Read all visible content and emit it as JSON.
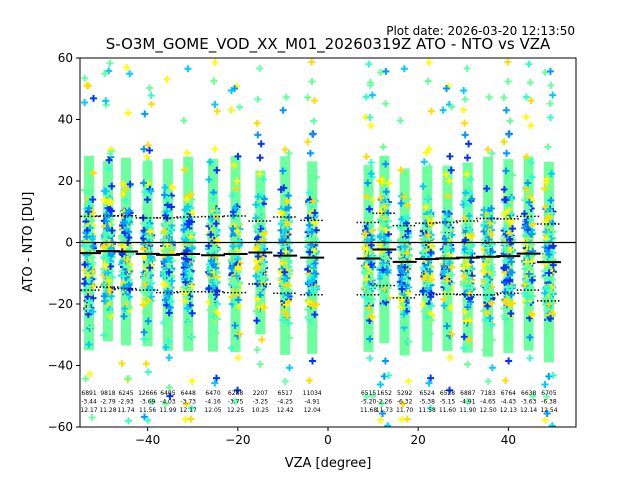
{
  "chart_data": {
    "type": "scatter",
    "title": "S-O3M_GOME_VOD_XX_M01_20260319Z ATO - NTO vs VZA",
    "plot_date": "Plot date: 2026-03-20 12:13:50",
    "xlabel": "VZA [degree]",
    "ylabel": "ATO - NTO [DU]",
    "xlim": [
      -55,
      55
    ],
    "ylim": [
      -60,
      60
    ],
    "xticks": [
      -40,
      -20,
      0,
      20,
      40
    ],
    "yticks": [
      -60,
      -40,
      -20,
      0,
      20,
      40,
      60
    ],
    "grid": false,
    "colors": {
      "scatter": [
        "#66ff99",
        "#33ffcc",
        "#00ccff",
        "#66ffaa",
        "#ffff00",
        "#ffdd00",
        "#0033ff",
        "#0099ff"
      ],
      "median": "#000000",
      "zero_line": "#000000"
    },
    "bins": [
      {
        "vza": -53.0,
        "median": -3.44,
        "upper": 8.5,
        "lower": -15.5,
        "n": "6891",
        "mean": "-3.44",
        "std": "12.17"
      },
      {
        "vza": -48.8,
        "median": -2.79,
        "upper": 8.6,
        "lower": -14.5,
        "n": "9818",
        "mean": "-2.79",
        "std": "11.28"
      },
      {
        "vza": -44.8,
        "median": -2.93,
        "upper": 8.7,
        "lower": -15.0,
        "n": "6245",
        "mean": "-2.93",
        "std": "11.74"
      },
      {
        "vza": -40.0,
        "median": -3.69,
        "upper": 8.0,
        "lower": -15.5,
        "n": "12666",
        "mean": "-3.69",
        "std": "11.56"
      },
      {
        "vza": -35.5,
        "median": -4.03,
        "upper": 8.0,
        "lower": -16.3,
        "n": "6405",
        "mean": "-4.03",
        "std": "11.99"
      },
      {
        "vza": -31.0,
        "median": -3.73,
        "upper": 8.3,
        "lower": -16.0,
        "n": "6448",
        "mean": "-3.73",
        "std": "12.17"
      },
      {
        "vza": -25.5,
        "median": -4.16,
        "upper": 8.4,
        "lower": -16.0,
        "n": "6470",
        "mean": "-4.16",
        "std": "12.05"
      },
      {
        "vza": -20.5,
        "median": -3.75,
        "upper": 8.6,
        "lower": -16.3,
        "n": "6288",
        "mean": "-3.75",
        "std": "12.25"
      },
      {
        "vza": -15.0,
        "median": -3.25,
        "upper": 7.0,
        "lower": -13.5,
        "n": "2207",
        "mean": "-3.25",
        "std": "10.25"
      },
      {
        "vza": -9.5,
        "median": -4.25,
        "upper": 8.3,
        "lower": -16.5,
        "n": "6517",
        "mean": "-4.25",
        "std": "12.42"
      },
      {
        "vza": -3.5,
        "median": -4.91,
        "upper": 7.2,
        "lower": -17.0,
        "n": "11034",
        "mean": "-4.91",
        "std": "12.04"
      },
      {
        "vza": 9.0,
        "median": -5.2,
        "upper": 6.5,
        "lower": -17.0,
        "n": "6515",
        "mean": "-5.20",
        "std": "11.68"
      },
      {
        "vza": 12.5,
        "median": -2.26,
        "upper": 9.5,
        "lower": -14.0,
        "n": "1652",
        "mean": "-2.26",
        "std": "11.73"
      },
      {
        "vza": 17.0,
        "median": -6.32,
        "upper": 5.5,
        "lower": -18.0,
        "n": "5292",
        "mean": "-6.32",
        "std": "11.70"
      },
      {
        "vza": 22.0,
        "median": -5.38,
        "upper": 6.3,
        "lower": -17.0,
        "n": "6524",
        "mean": "-5.38",
        "std": "11.58"
      },
      {
        "vza": 26.5,
        "median": -5.15,
        "upper": 6.5,
        "lower": -16.8,
        "n": "6528",
        "mean": "-5.15",
        "std": "11.60"
      },
      {
        "vza": 31.0,
        "median": -4.91,
        "upper": 7.0,
        "lower": -17.0,
        "n": "6887",
        "mean": "-4.91",
        "std": "11.90"
      },
      {
        "vza": 35.5,
        "median": -4.65,
        "upper": 7.8,
        "lower": -17.0,
        "n": "7183",
        "mean": "-4.65",
        "std": "12.50"
      },
      {
        "vza": 40.0,
        "median": -4.43,
        "upper": 7.7,
        "lower": -16.5,
        "n": "6764",
        "mean": "-4.43",
        "std": "12.13"
      },
      {
        "vza": 44.5,
        "median": -3.63,
        "upper": 8.5,
        "lower": -15.5,
        "n": "6638",
        "mean": "-3.63",
        "std": "12.14"
      },
      {
        "vza": 49.0,
        "median": -6.38,
        "upper": 6.0,
        "lower": -19.0,
        "n": "6705",
        "mean": "-6.38",
        "std": "12.54"
      }
    ]
  }
}
